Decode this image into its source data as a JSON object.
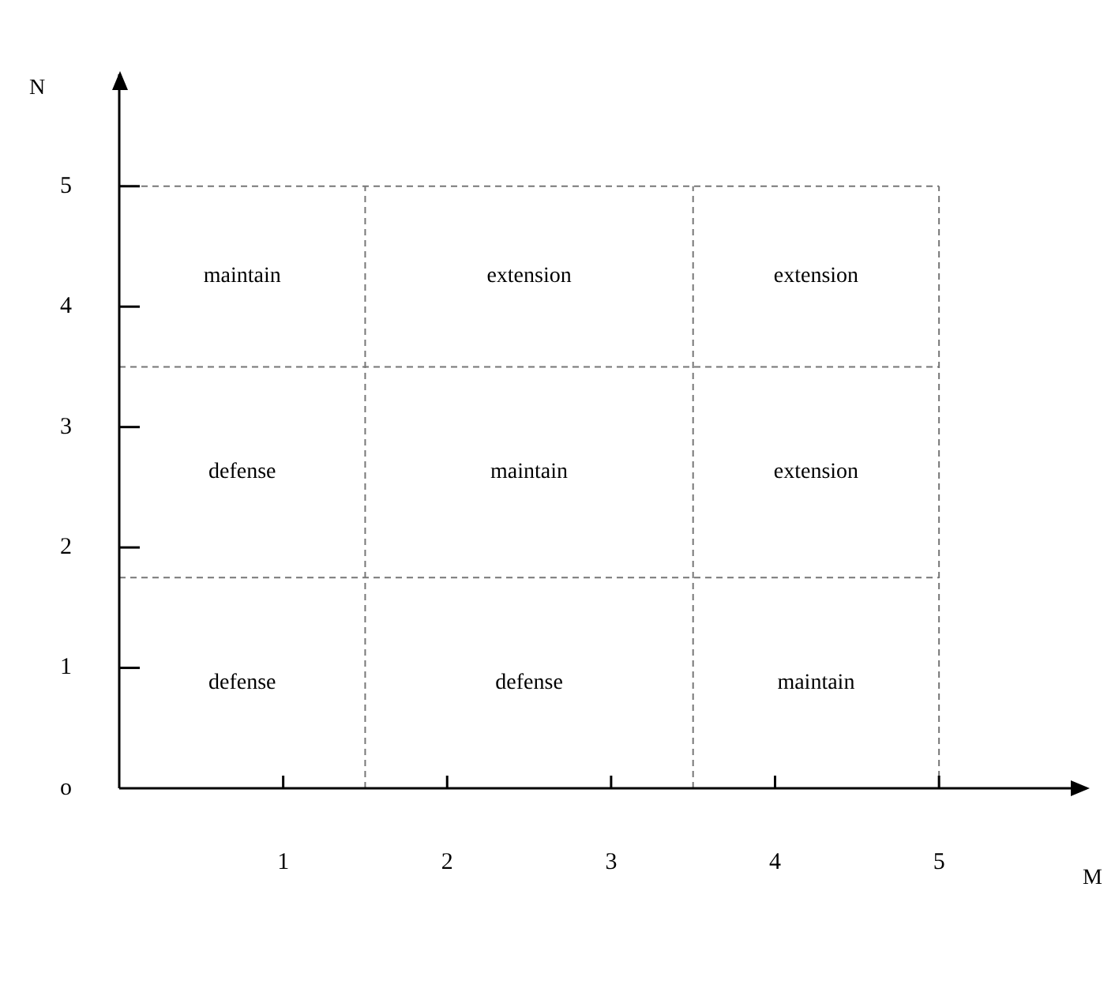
{
  "chart_data": {
    "type": "scatter",
    "xlabel": "M",
    "ylabel": "N",
    "xlim": [
      0,
      5.9
    ],
    "ylim": [
      0,
      5.93
    ],
    "xticks": [
      1,
      2,
      3,
      4,
      5
    ],
    "yticks": [
      {
        "value": 0,
        "label": "o"
      },
      1,
      2,
      3,
      4,
      5
    ],
    "ref_lines": [
      {
        "axis": "x",
        "value": 1.5,
        "line_style": "dashed"
      },
      {
        "axis": "x",
        "value": 3.5,
        "line_style": "dashed"
      },
      {
        "axis": "x",
        "value": 5,
        "line_style": "dashed"
      },
      {
        "axis": "y",
        "value": 1.75,
        "line_style": "dashed"
      },
      {
        "axis": "y",
        "value": 3.5,
        "line_style": "dashed"
      },
      {
        "axis": "y",
        "value": 5,
        "line_style": "dashed"
      }
    ],
    "annotations": [
      "maintain",
      "extension",
      "extension",
      "defense",
      "maintain",
      "extension",
      "defense",
      "defense",
      "maintain"
    ]
  }
}
